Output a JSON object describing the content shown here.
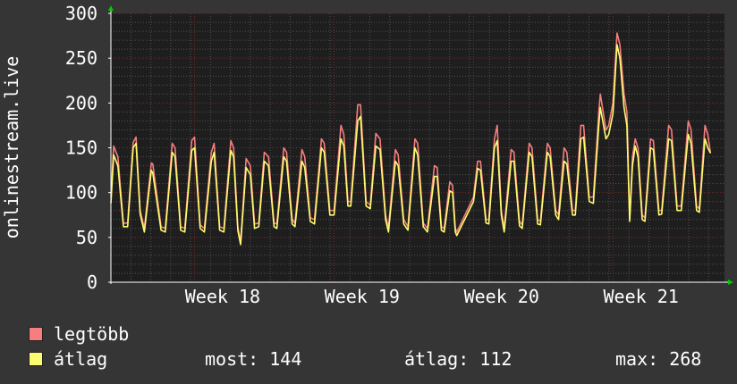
{
  "chart_data": {
    "type": "line",
    "ylabel": "onlinestream.live",
    "ylim": [
      0,
      300
    ],
    "yticks": [
      0,
      50,
      100,
      150,
      200,
      250,
      300
    ],
    "x_range": [
      0,
      4.4
    ],
    "x_categories": [
      {
        "label": "Week 18",
        "x": 1.0
      },
      {
        "label": "Week 19",
        "x": 2.0
      },
      {
        "label": "Week 20",
        "x": 3.0
      },
      {
        "label": "Week 21",
        "x": 4.0
      }
    ],
    "gaps": [
      [
        2.5,
        2.6
      ]
    ],
    "series": [
      {
        "name": "legtöbb",
        "color": "#f67e7e"
      },
      {
        "name": "átlag",
        "color": "#fcfc70"
      }
    ],
    "points": [
      [
        0.0,
        95,
        88
      ],
      [
        0.02,
        152,
        142
      ],
      [
        0.05,
        140,
        130
      ],
      [
        0.09,
        66,
        62
      ],
      [
        0.12,
        66,
        62
      ],
      [
        0.16,
        156,
        150
      ],
      [
        0.18,
        162,
        155
      ],
      [
        0.21,
        80,
        76
      ],
      [
        0.24,
        60,
        56
      ],
      [
        0.29,
        133,
        125
      ],
      [
        0.3,
        132,
        122
      ],
      [
        0.36,
        62,
        58
      ],
      [
        0.39,
        60,
        56
      ],
      [
        0.44,
        155,
        145
      ],
      [
        0.46,
        150,
        140
      ],
      [
        0.5,
        62,
        58
      ],
      [
        0.53,
        60,
        56
      ],
      [
        0.58,
        158,
        147
      ],
      [
        0.6,
        162,
        150
      ],
      [
        0.64,
        64,
        60
      ],
      [
        0.67,
        60,
        56
      ],
      [
        0.72,
        145,
        135
      ],
      [
        0.74,
        155,
        145
      ],
      [
        0.78,
        62,
        58
      ],
      [
        0.81,
        60,
        56
      ],
      [
        0.86,
        158,
        147
      ],
      [
        0.88,
        150,
        140
      ],
      [
        0.91,
        62,
        58
      ],
      [
        0.93,
        45,
        42
      ],
      [
        0.97,
        138,
        128
      ],
      [
        1.0,
        130,
        120
      ],
      [
        1.03,
        65,
        60
      ],
      [
        1.06,
        66,
        62
      ],
      [
        1.1,
        145,
        135
      ],
      [
        1.13,
        140,
        130
      ],
      [
        1.17,
        66,
        62
      ],
      [
        1.19,
        65,
        60
      ],
      [
        1.24,
        150,
        140
      ],
      [
        1.26,
        145,
        135
      ],
      [
        1.3,
        70,
        65
      ],
      [
        1.32,
        66,
        62
      ],
      [
        1.37,
        148,
        135
      ],
      [
        1.39,
        140,
        128
      ],
      [
        1.43,
        72,
        68
      ],
      [
        1.46,
        70,
        65
      ],
      [
        1.51,
        160,
        150
      ],
      [
        1.53,
        155,
        145
      ],
      [
        1.57,
        80,
        75
      ],
      [
        1.6,
        80,
        75
      ],
      [
        1.65,
        175,
        160
      ],
      [
        1.67,
        165,
        152
      ],
      [
        1.7,
        90,
        85
      ],
      [
        1.72,
        90,
        85
      ],
      [
        1.77,
        198,
        180
      ],
      [
        1.79,
        198,
        185
      ],
      [
        1.83,
        90,
        85
      ],
      [
        1.86,
        86,
        82
      ],
      [
        1.9,
        166,
        152
      ],
      [
        1.93,
        160,
        148
      ],
      [
        1.97,
        75,
        70
      ],
      [
        1.99,
        60,
        56
      ],
      [
        2.04,
        148,
        135
      ],
      [
        2.06,
        142,
        130
      ],
      [
        2.1,
        70,
        65
      ],
      [
        2.13,
        62,
        58
      ],
      [
        2.18,
        160,
        150
      ],
      [
        2.2,
        155,
        142
      ],
      [
        2.24,
        66,
        62
      ],
      [
        2.27,
        60,
        56
      ],
      [
        2.32,
        130,
        118
      ],
      [
        2.34,
        128,
        118
      ],
      [
        2.37,
        62,
        58
      ],
      [
        2.39,
        60,
        56
      ],
      [
        2.43,
        112,
        102
      ],
      [
        2.45,
        108,
        100
      ],
      [
        2.47,
        60,
        56
      ],
      [
        2.48,
        56,
        52
      ],
      [
        2.52,
        155,
        145
      ],
      [
        2.55,
        162,
        150
      ],
      [
        2.56,
        116,
        110
      ],
      [
        2.6,
        95,
        90
      ],
      [
        2.63,
        135,
        127
      ],
      [
        2.65,
        135,
        125
      ],
      [
        2.69,
        70,
        66
      ],
      [
        2.71,
        70,
        65
      ],
      [
        2.75,
        160,
        150
      ],
      [
        2.77,
        175,
        158
      ],
      [
        2.8,
        80,
        75
      ],
      [
        2.82,
        60,
        56
      ],
      [
        2.87,
        148,
        135
      ],
      [
        2.89,
        145,
        135
      ],
      [
        2.93,
        68,
        63
      ],
      [
        2.95,
        64,
        60
      ],
      [
        3.0,
        155,
        145
      ],
      [
        3.02,
        150,
        140
      ],
      [
        3.06,
        70,
        65
      ],
      [
        3.08,
        68,
        64
      ],
      [
        3.13,
        155,
        145
      ],
      [
        3.15,
        150,
        140
      ],
      [
        3.19,
        80,
        75
      ],
      [
        3.21,
        75,
        70
      ],
      [
        3.25,
        150,
        135
      ],
      [
        3.27,
        145,
        132
      ],
      [
        3.31,
        80,
        75
      ],
      [
        3.33,
        80,
        75
      ],
      [
        3.37,
        175,
        160
      ],
      [
        3.39,
        175,
        162
      ],
      [
        3.43,
        95,
        90
      ],
      [
        3.46,
        95,
        88
      ],
      [
        3.5,
        193,
        178
      ],
      [
        3.51,
        210,
        195
      ],
      [
        3.55,
        170,
        160
      ],
      [
        3.57,
        175,
        165
      ],
      [
        3.6,
        200,
        188
      ],
      [
        3.63,
        278,
        265
      ],
      [
        3.65,
        265,
        250
      ],
      [
        3.68,
        210,
        195
      ],
      [
        3.7,
        190,
        175
      ],
      [
        3.72,
        70,
        68
      ],
      [
        3.74,
        140,
        130
      ],
      [
        3.76,
        160,
        152
      ],
      [
        3.78,
        150,
        140
      ],
      [
        3.81,
        75,
        70
      ],
      [
        3.83,
        72,
        68
      ],
      [
        3.87,
        160,
        150
      ],
      [
        3.89,
        158,
        148
      ],
      [
        3.93,
        80,
        75
      ],
      [
        3.95,
        80,
        76
      ],
      [
        4.0,
        175,
        160
      ],
      [
        4.02,
        170,
        158
      ],
      [
        4.06,
        85,
        80
      ],
      [
        4.09,
        85,
        80
      ],
      [
        4.14,
        180,
        165
      ],
      [
        4.16,
        170,
        155
      ],
      [
        4.2,
        85,
        80
      ],
      [
        4.22,
        82,
        78
      ],
      [
        4.26,
        175,
        160
      ],
      [
        4.28,
        165,
        150
      ],
      [
        4.3,
        144,
        144
      ]
    ]
  },
  "legend": {
    "items": [
      {
        "label": "legtöbb",
        "color": "#f67e7e"
      },
      {
        "label": "átlag",
        "color": "#fcfc70"
      }
    ]
  },
  "stats": {
    "most": "most: 144",
    "atlag": "átlag: 112",
    "max": "max: 268"
  },
  "colors": {
    "background": "#353535",
    "plot_background": "#1e1e1e",
    "grid_major": "#7a2828",
    "grid_minor": "#505050",
    "axis": "#ffffff",
    "arrow": "#00cc00"
  }
}
